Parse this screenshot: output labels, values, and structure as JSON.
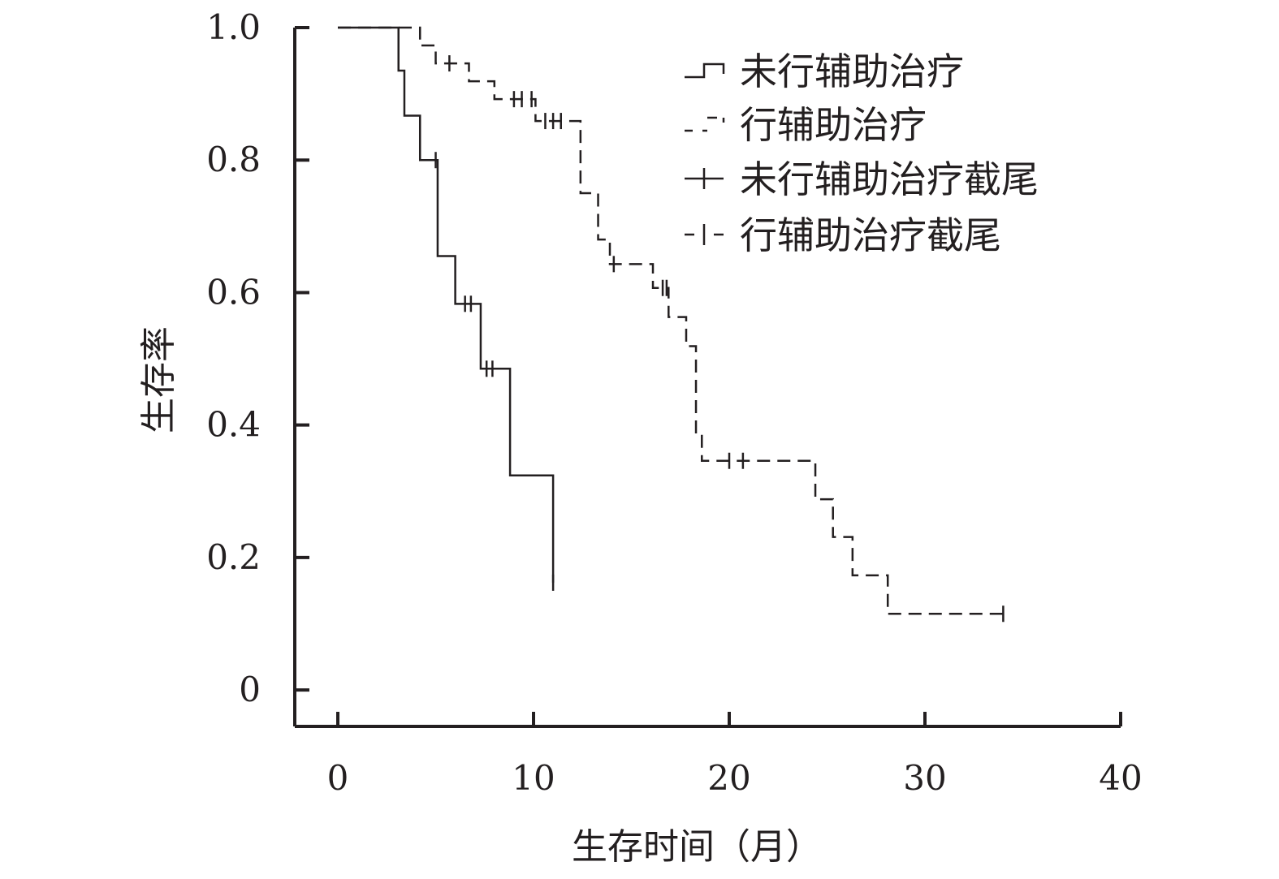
{
  "chart_data": {
    "type": "line",
    "subtype": "kaplan-meier-step",
    "title": "",
    "xlabel": "生存时间（月）",
    "ylabel": "生存率",
    "xlim": [
      -2.2,
      40
    ],
    "ylim": [
      -0.055,
      1.0
    ],
    "x_ticks": [
      0,
      10,
      20,
      30,
      40
    ],
    "x_tick_labels": [
      "0",
      "10",
      "20",
      "30",
      "40"
    ],
    "y_ticks": [
      0,
      0.2,
      0.4,
      0.6,
      0.8,
      1.0
    ],
    "y_tick_labels": [
      "0",
      "0.2",
      "0.4",
      "0.6",
      "0.8",
      "1.0"
    ],
    "grid": false,
    "legend_position": "top-right",
    "legend": [
      {
        "label": "未行辅助治疗",
        "style": "solid-step"
      },
      {
        "label": "行辅助治疗",
        "style": "dashed-step"
      },
      {
        "label": "未行辅助治疗截尾",
        "style": "solid-censor"
      },
      {
        "label": "行辅助治疗截尾",
        "style": "dashed-censor"
      }
    ],
    "series": [
      {
        "name": "未行辅助治疗",
        "line_style": "solid",
        "steps": [
          {
            "t": 0,
            "s": 1.0
          },
          {
            "t": 3.1,
            "s": 0.935
          },
          {
            "t": 3.4,
            "s": 0.867
          },
          {
            "t": 4.2,
            "s": 0.8
          },
          {
            "t": 5.1,
            "s": 0.655
          },
          {
            "t": 6.0,
            "s": 0.583
          },
          {
            "t": 7.3,
            "s": 0.485
          },
          {
            "t": 8.8,
            "s": 0.324
          },
          {
            "t": 11.0,
            "s": 0.162
          }
        ],
        "end_time": 11.0,
        "censored": [
          {
            "t": 5.0,
            "s": 0.8
          },
          {
            "t": 6.5,
            "s": 0.583
          },
          {
            "t": 6.8,
            "s": 0.583
          },
          {
            "t": 7.6,
            "s": 0.485
          },
          {
            "t": 7.9,
            "s": 0.485
          },
          {
            "t": 11.0,
            "s": 0.162
          }
        ]
      },
      {
        "name": "行辅助治疗",
        "line_style": "dashed",
        "steps": [
          {
            "t": 0,
            "s": 1.0
          },
          {
            "t": 4.2,
            "s": 0.973
          },
          {
            "t": 5.0,
            "s": 0.946
          },
          {
            "t": 6.7,
            "s": 0.919
          },
          {
            "t": 8.0,
            "s": 0.892
          },
          {
            "t": 10.1,
            "s": 0.859
          },
          {
            "t": 12.4,
            "s": 0.75
          },
          {
            "t": 13.3,
            "s": 0.68
          },
          {
            "t": 13.9,
            "s": 0.643
          },
          {
            "t": 16.1,
            "s": 0.607
          },
          {
            "t": 16.9,
            "s": 0.563
          },
          {
            "t": 17.8,
            "s": 0.519
          },
          {
            "t": 18.3,
            "s": 0.387
          },
          {
            "t": 18.6,
            "s": 0.346
          },
          {
            "t": 24.4,
            "s": 0.288
          },
          {
            "t": 25.3,
            "s": 0.231
          },
          {
            "t": 26.3,
            "s": 0.173
          },
          {
            "t": 28.1,
            "s": 0.115
          }
        ],
        "end_time": 34.0,
        "censored": [
          {
            "t": 5.7,
            "s": 0.946
          },
          {
            "t": 9.0,
            "s": 0.892
          },
          {
            "t": 9.4,
            "s": 0.892
          },
          {
            "t": 9.9,
            "s": 0.892
          },
          {
            "t": 10.6,
            "s": 0.859
          },
          {
            "t": 11.0,
            "s": 0.859
          },
          {
            "t": 11.4,
            "s": 0.859
          },
          {
            "t": 14.1,
            "s": 0.643
          },
          {
            "t": 16.6,
            "s": 0.607
          },
          {
            "t": 16.8,
            "s": 0.607
          },
          {
            "t": 20.0,
            "s": 0.346
          },
          {
            "t": 20.7,
            "s": 0.346
          },
          {
            "t": 34.0,
            "s": 0.115
          }
        ]
      }
    ]
  }
}
